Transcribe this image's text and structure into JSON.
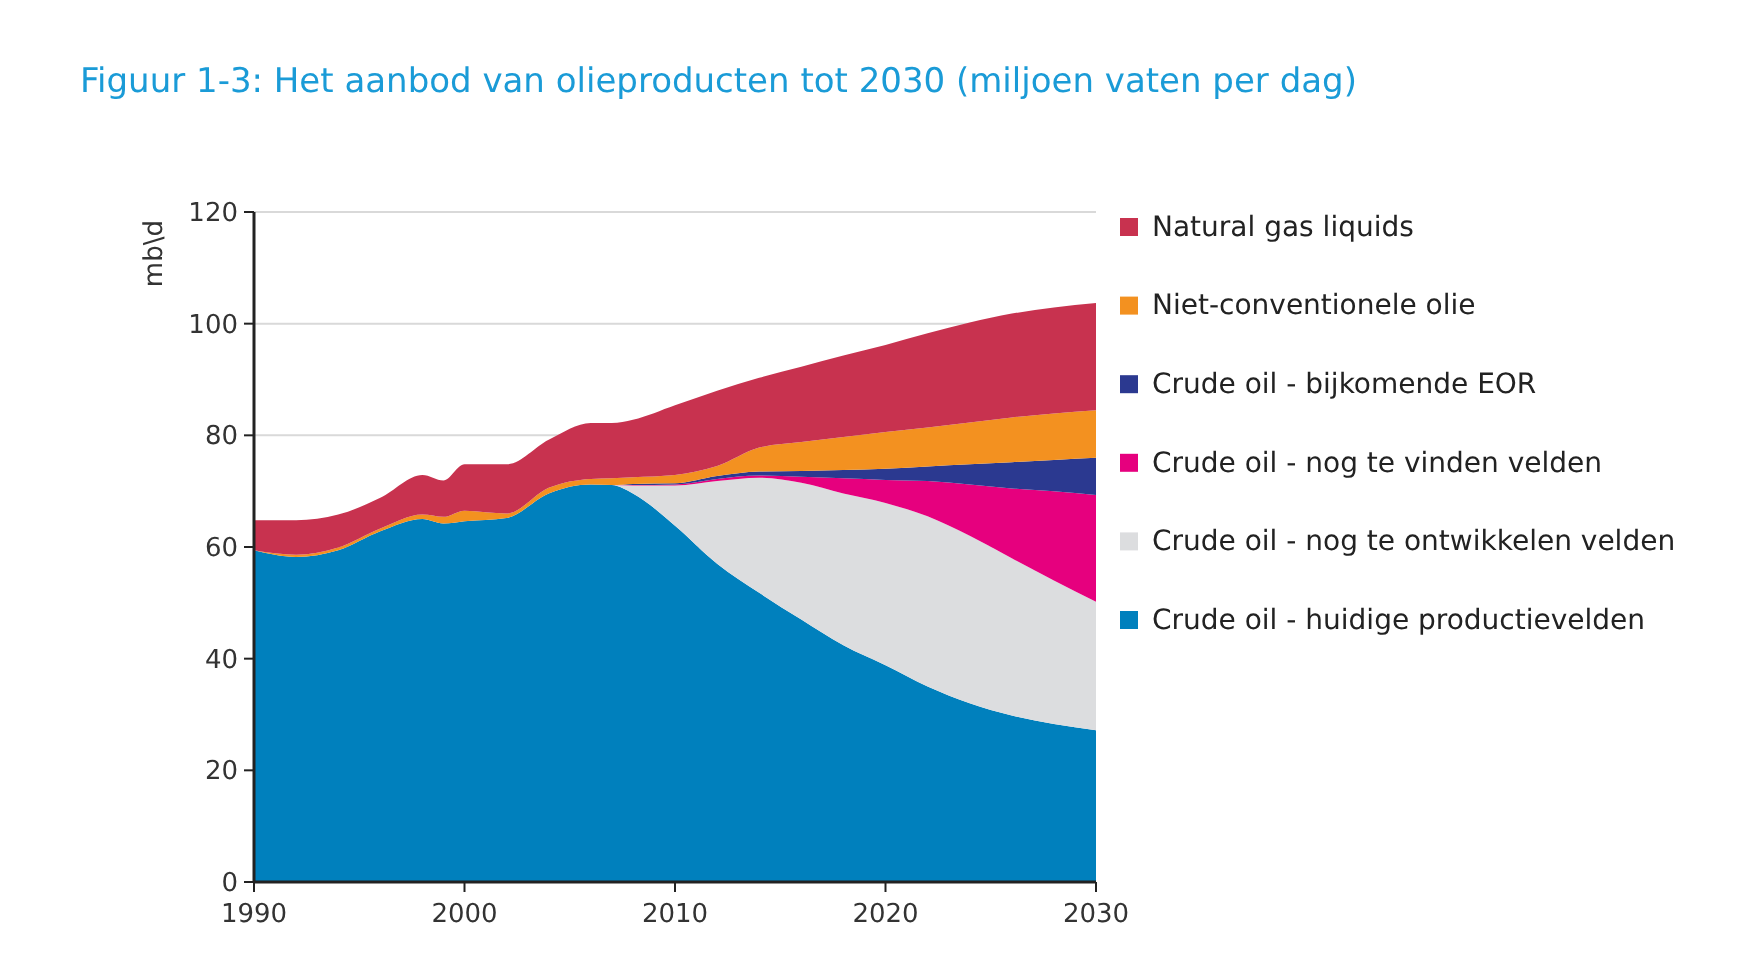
{
  "chart_data": {
    "type": "area",
    "stacked": true,
    "title": "Figuur 1-3: Het aanbod van olieproducten tot 2030 (miljoen vaten per dag)",
    "ylabel": "mb\\d",
    "x": [
      1990,
      1992,
      1994,
      1996,
      1998,
      1999,
      2000,
      2002,
      2004,
      2006,
      2007,
      2008,
      2010,
      2012,
      2014,
      2016,
      2018,
      2020,
      2022,
      2024,
      2026,
      2028,
      2030
    ],
    "xlim": [
      1990,
      2030
    ],
    "xticks": [
      1990,
      2000,
      2010,
      2020,
      2030
    ],
    "ylim": [
      0,
      120
    ],
    "yticks": [
      0,
      20,
      40,
      60,
      80,
      100,
      120
    ],
    "grid": "y",
    "legend": "right",
    "series": [
      {
        "name": "Crude oil - huidige productievelden",
        "color": "#0080bd",
        "values": [
          59.4,
          58.2,
          59.4,
          62.8,
          65,
          64.2,
          64.6,
          65.2,
          69.6,
          71.2,
          71.1,
          69.6,
          63.8,
          57,
          51.8,
          47,
          42.4,
          38.8,
          35,
          32,
          29.8,
          28.3,
          27.2
        ]
      },
      {
        "name": "Crude oil - nog te ontwikkelen velden",
        "color": "#dcdddf",
        "values": [
          0,
          0,
          0,
          0,
          0,
          0,
          0,
          0,
          0,
          0,
          0,
          1.4,
          7.2,
          14.8,
          20.6,
          24.5,
          27.2,
          29.1,
          30.5,
          30,
          28.2,
          25.7,
          23
        ]
      },
      {
        "name": "Crude oil - nog te vinden velden",
        "color": "#e6007e",
        "values": [
          0,
          0,
          0,
          0,
          0,
          0,
          0,
          0,
          0,
          0,
          0,
          0.1,
          0.2,
          0.4,
          0.4,
          1.1,
          2.7,
          4.1,
          6.3,
          9.2,
          12.5,
          16,
          19.1
        ]
      },
      {
        "name": "Crude oil - bijkomende EOR",
        "color": "#2b3990",
        "values": [
          0,
          0,
          0,
          0,
          0,
          0,
          0,
          0,
          0,
          0,
          0,
          0.2,
          0.2,
          0.5,
          0.7,
          1,
          1.5,
          2,
          2.6,
          3.6,
          4.7,
          5.6,
          6.7
        ]
      },
      {
        "name": "Niet-conventionele olie",
        "color": "#f39120",
        "values": [
          0,
          0.4,
          0.5,
          0.5,
          0.8,
          1.2,
          1.9,
          0.8,
          1,
          1,
          1.2,
          1.2,
          1.5,
          1.8,
          4.3,
          5.2,
          5.9,
          6.6,
          7,
          7.5,
          8,
          8.3,
          8.5
        ]
      },
      {
        "name": "Natural gas liquids",
        "color": "#c8324f",
        "values": [
          5.4,
          6.2,
          5.9,
          5.5,
          7.1,
          6.5,
          8.3,
          8.8,
          8.6,
          10,
          9.9,
          10.3,
          12.5,
          13.5,
          12.5,
          13.5,
          14.6,
          15.6,
          16.9,
          17.9,
          18.6,
          19,
          19.2
        ]
      }
    ]
  }
}
